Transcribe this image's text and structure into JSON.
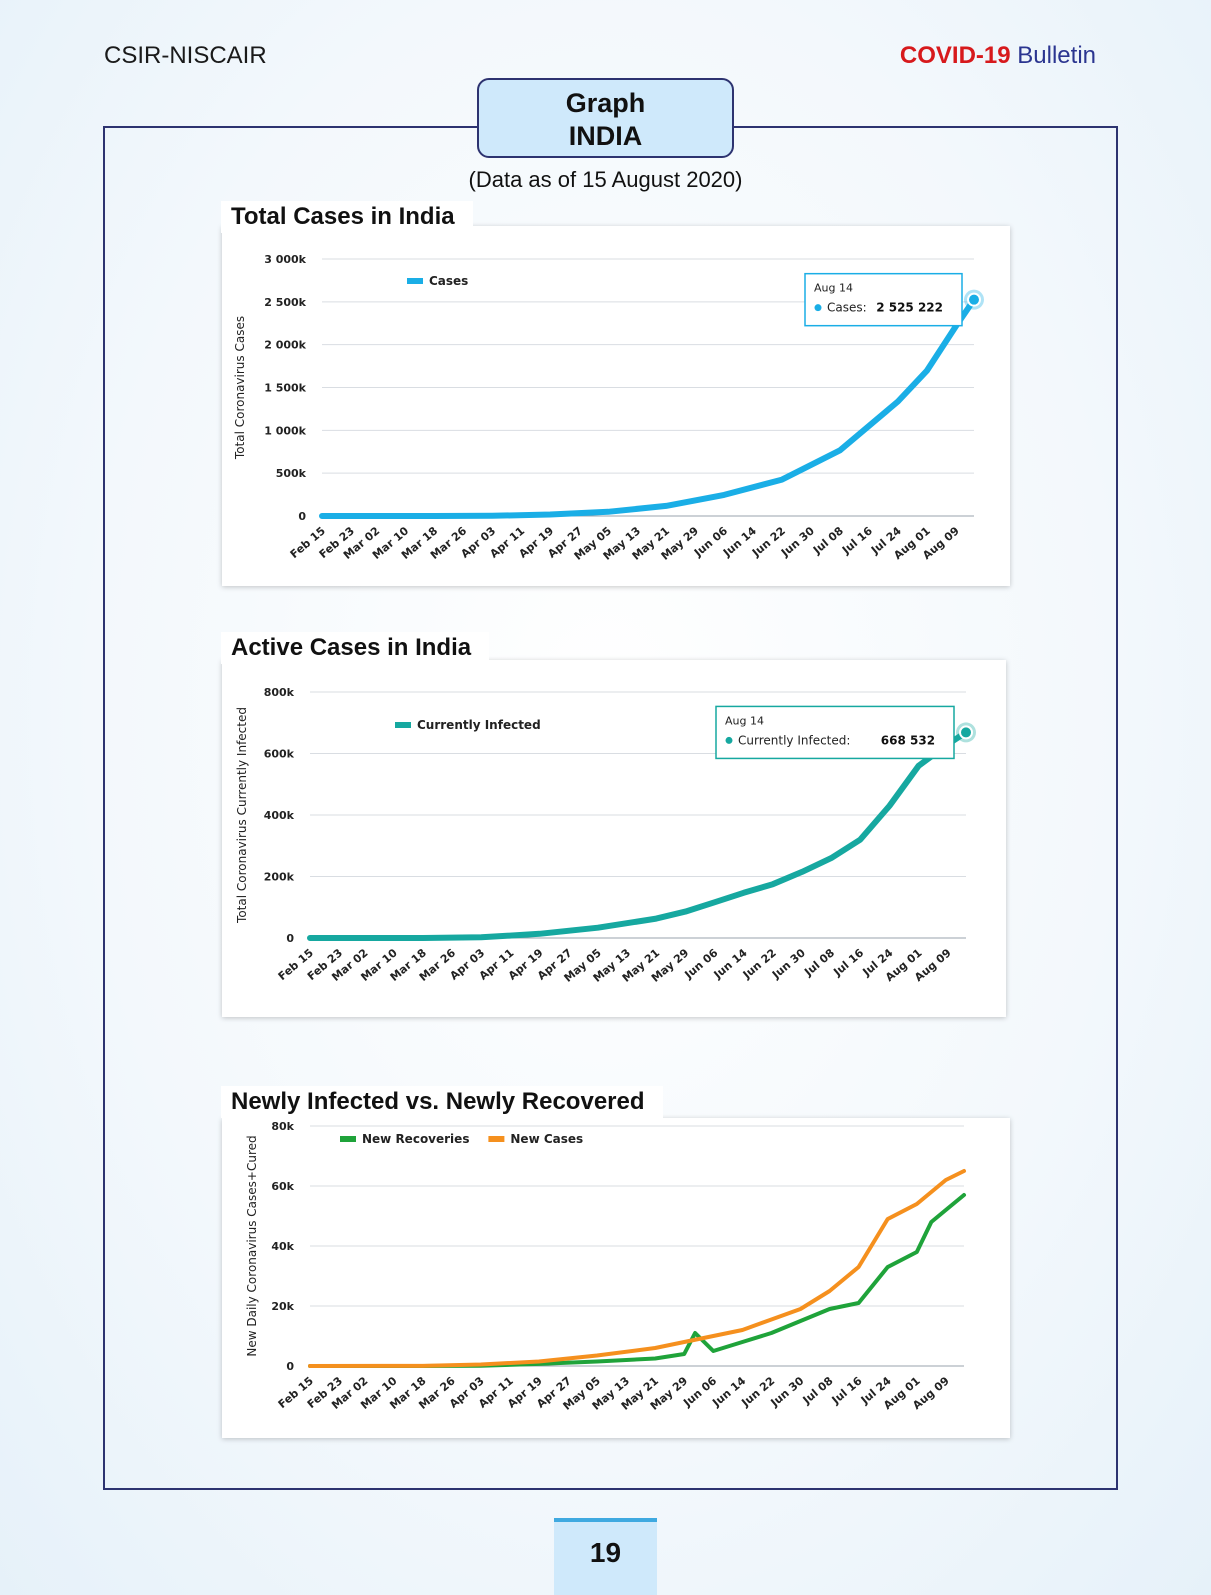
{
  "header": {
    "left": "CSIR-NISCAIR",
    "right_accent": "COVID-19",
    "right_rest": "Bulletin",
    "accent_color": "#d7191c",
    "rest_color": "#2b3590"
  },
  "title_box": {
    "line1": "Graph",
    "line2": "INDIA"
  },
  "as_of": "(Data as of 15 August 2020)",
  "page_number": "19",
  "chart_data": [
    {
      "type": "line",
      "title": "Total Cases in India",
      "ylabel": "Total Coronavirus Cases",
      "ylim": [
        0,
        3000000
      ],
      "yticks": [
        0,
        500000,
        1000000,
        1500000,
        2000000,
        2500000,
        3000000
      ],
      "ytick_labels": [
        "0",
        "500k",
        "1 000k",
        "1 500k",
        "2 000k",
        "2 500k",
        "3 000k"
      ],
      "xtick_labels": [
        "Feb 15",
        "Feb 23",
        "Mar 02",
        "Mar 10",
        "Mar 18",
        "Mar 26",
        "Apr 03",
        "Apr 11",
        "Apr 19",
        "Apr 27",
        "May 05",
        "May 13",
        "May 21",
        "May 29",
        "Jun 06",
        "Jun 14",
        "Jun 22",
        "Jun 30",
        "Jul 08",
        "Jul 16",
        "Jul 24",
        "Aug 01",
        "Aug 09"
      ],
      "legend": "top-left",
      "grid": true,
      "series": [
        {
          "name": "Cases",
          "color": "#1aaee6",
          "x": [
            "Feb 15",
            "Mar 02",
            "Mar 18",
            "Apr 03",
            "Apr 19",
            "May 05",
            "May 21",
            "Jun 06",
            "Jun 22",
            "Jul 08",
            "Jul 24",
            "Aug 01",
            "Aug 09",
            "Aug 14"
          ],
          "values": [
            3,
            5,
            151,
            2547,
            17265,
            49391,
            118447,
            246628,
            425282,
            767296,
            1337022,
            1695988,
            2215074,
            2525222
          ]
        }
      ],
      "tooltip": {
        "date": "Aug 14",
        "label": "Cases:",
        "value": "2 525 222"
      }
    },
    {
      "type": "line",
      "title": "Active Cases in India",
      "ylabel": "Total Coronavirus Currently Infected",
      "ylim": [
        0,
        800000
      ],
      "yticks": [
        0,
        200000,
        400000,
        600000,
        800000
      ],
      "ytick_labels": [
        "0",
        "200k",
        "400k",
        "600k",
        "800k"
      ],
      "xtick_labels": [
        "Feb 15",
        "Feb 23",
        "Mar 02",
        "Mar 10",
        "Mar 18",
        "Mar 26",
        "Apr 03",
        "Apr 11",
        "Apr 19",
        "Apr 27",
        "May 05",
        "May 13",
        "May 21",
        "May 29",
        "Jun 06",
        "Jun 14",
        "Jun 22",
        "Jun 30",
        "Jul 08",
        "Jul 16",
        "Jul 24",
        "Aug 01",
        "Aug 09"
      ],
      "legend": "top-left",
      "grid": true,
      "series": [
        {
          "name": "Currently Infected",
          "color": "#16a8a0",
          "x": [
            "Feb 15",
            "Mar 02",
            "Mar 18",
            "Apr 03",
            "Apr 19",
            "May 05",
            "May 21",
            "May 29",
            "Jun 06",
            "Jun 14",
            "Jun 22",
            "Jun 30",
            "Jul 08",
            "Jul 16",
            "Jul 24",
            "Aug 01",
            "Aug 09",
            "Aug 14"
          ],
          "values": [
            3,
            2,
            130,
            2300,
            13500,
            33500,
            63000,
            86000,
            116000,
            147000,
            175000,
            215000,
            260000,
            320000,
            430000,
            560000,
            630000,
            668532
          ]
        }
      ],
      "tooltip": {
        "date": "Aug 14",
        "label": "Currently Infected:",
        "value": "668 532"
      }
    },
    {
      "type": "line",
      "title": "Newly Infected vs. Newly Recovered",
      "ylabel": "New Daily Coronavirus Cases+Cured",
      "ylim": [
        0,
        80000
      ],
      "yticks": [
        0,
        20000,
        40000,
        60000,
        80000
      ],
      "ytick_labels": [
        "0",
        "20k",
        "40k",
        "60k",
        "80k"
      ],
      "xtick_labels": [
        "Feb 15",
        "Feb 23",
        "Mar 02",
        "Mar 10",
        "Mar 18",
        "Mar 26",
        "Apr 03",
        "Apr 11",
        "Apr 19",
        "Apr 27",
        "May 05",
        "May 13",
        "May 21",
        "May 29",
        "Jun 06",
        "Jun 14",
        "Jun 22",
        "Jun 30",
        "Jul 08",
        "Jul 16",
        "Jul 24",
        "Aug 01",
        "Aug 09"
      ],
      "legend": "top-left",
      "grid": true,
      "series": [
        {
          "name": "New Recoveries",
          "color": "#1fa33a",
          "x": [
            "Feb 15",
            "Mar 18",
            "Apr 03",
            "Apr 19",
            "May 05",
            "May 21",
            "May 29",
            "Jun 01",
            "Jun 06",
            "Jun 14",
            "Jun 22",
            "Jun 30",
            "Jul 08",
            "Jul 16",
            "Jul 24",
            "Aug 01",
            "Aug 05",
            "Aug 09",
            "Aug 14"
          ],
          "values": [
            0,
            10,
            100,
            700,
            1500,
            2500,
            4000,
            11000,
            5000,
            8000,
            11000,
            15000,
            19000,
            21000,
            33000,
            38000,
            48000,
            52000,
            57000
          ]
        },
        {
          "name": "New Cases",
          "color": "#f5901e",
          "x": [
            "Feb 15",
            "Mar 18",
            "Apr 03",
            "Apr 19",
            "May 05",
            "May 21",
            "May 29",
            "Jun 06",
            "Jun 14",
            "Jun 22",
            "Jun 30",
            "Jul 08",
            "Jul 16",
            "Jul 24",
            "Aug 01",
            "Aug 09",
            "Aug 14"
          ],
          "values": [
            0,
            20,
            500,
            1500,
            3500,
            6000,
            8000,
            10000,
            12000,
            15500,
            19000,
            25000,
            33000,
            49000,
            54000,
            62000,
            65000
          ]
        }
      ]
    }
  ]
}
